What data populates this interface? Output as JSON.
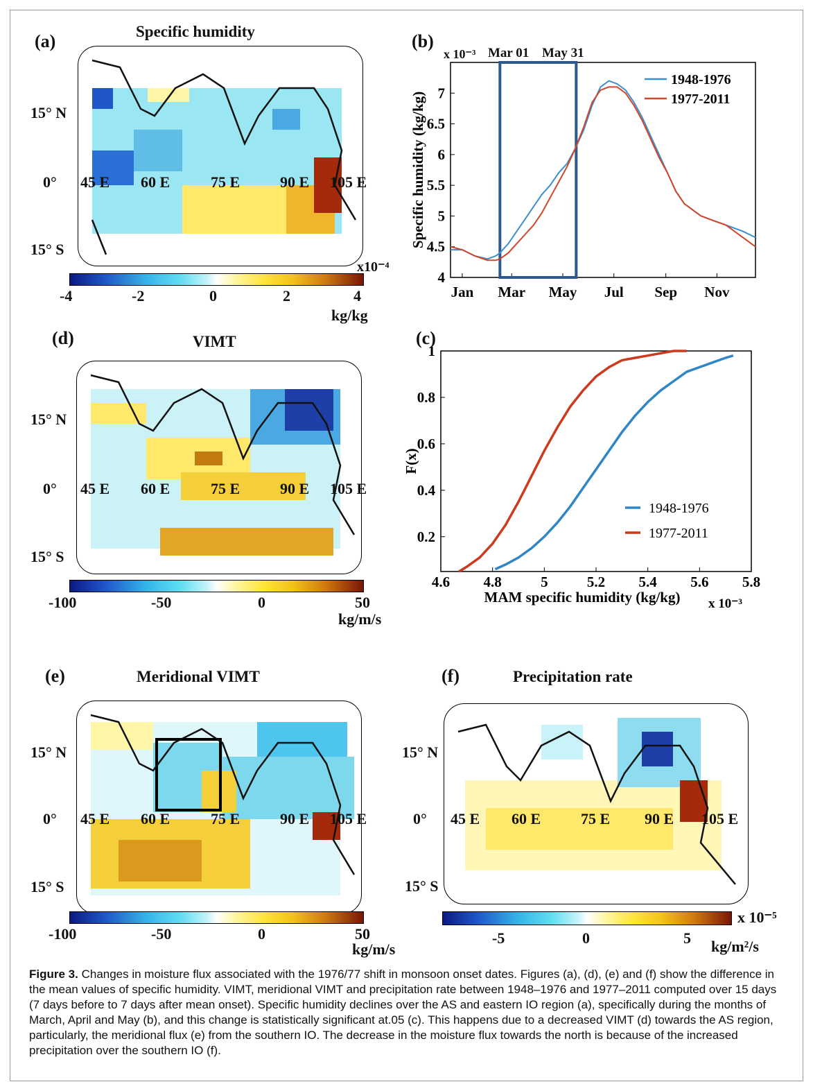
{
  "panels": {
    "a": {
      "label": "(a)",
      "title": "Specific humidity",
      "lat_labels": [
        "15° N",
        "0°",
        "15° S"
      ],
      "lon_labels": [
        "45 E",
        "60 E",
        "75 E",
        "90 E",
        "105 E"
      ],
      "exponent": "x10⁻⁴",
      "ticks": [
        "-4",
        "-2",
        "0",
        "2",
        "4"
      ],
      "unit": "kg/kg"
    },
    "b": {
      "label": "(b)",
      "exponent": "x 10⁻³",
      "annotations": [
        "Mar 01",
        "May 31"
      ]
    },
    "c": {
      "label": "(c)"
    },
    "d": {
      "label": "(d)",
      "title": "VIMT",
      "lat_labels": [
        "15° N",
        "0°",
        "15° S"
      ],
      "lon_labels": [
        "45 E",
        "60 E",
        "75 E",
        "90 E",
        "105 E"
      ],
      "ticks": [
        "-100",
        "-50",
        "0",
        "50"
      ],
      "unit": "kg/m/s"
    },
    "e": {
      "label": "(e)",
      "title": "Meridional VIMT",
      "lat_labels": [
        "15° N",
        "0°",
        "15° S"
      ],
      "lon_labels": [
        "45 E",
        "60 E",
        "75 E",
        "90 E",
        "105 E"
      ],
      "ticks": [
        "-100",
        "-50",
        "0",
        "50"
      ],
      "unit": "kg/m/s"
    },
    "f": {
      "label": "(f)",
      "title": "Precipitation rate",
      "lat_labels": [
        "15° N",
        "0°",
        "15° S"
      ],
      "lon_labels": [
        "45 E",
        "60 E",
        "75 E",
        "90 E",
        "105 E"
      ],
      "exponent": "x 10⁻⁵",
      "ticks": [
        "-5",
        "0",
        "5"
      ],
      "unit": "kg/m²/s"
    }
  },
  "chart_data": [
    {
      "id": "b",
      "type": "line",
      "ylabel": "Specific humidity (kg/kg)",
      "xlabel": "",
      "x_ticks": [
        "Jan",
        "Mar",
        "May",
        "Jul",
        "Sep",
        "Nov"
      ],
      "x_tick_days": [
        15,
        74,
        135,
        196,
        258,
        319
      ],
      "y_ticks": [
        "4",
        "4.5",
        "5",
        "5.5",
        "6",
        "6.5",
        "7"
      ],
      "ylim": [
        4,
        7.5
      ],
      "xlim": [
        1,
        365
      ],
      "highlight_box": {
        "from_day": 60,
        "to_day": 151
      },
      "legend_position": "top-right",
      "series": [
        {
          "name": "1948-1976",
          "color": "#3a8fcf",
          "x": [
            1,
            15,
            30,
            45,
            55,
            60,
            70,
            80,
            90,
            100,
            110,
            120,
            130,
            140,
            150,
            160,
            170,
            180,
            190,
            200,
            210,
            220,
            230,
            240,
            250,
            260,
            270,
            280,
            290,
            300,
            310,
            320,
            330,
            340,
            350,
            365
          ],
          "y": [
            4.45,
            4.45,
            4.35,
            4.3,
            4.35,
            4.4,
            4.55,
            4.75,
            4.95,
            5.15,
            5.35,
            5.5,
            5.7,
            5.85,
            6.1,
            6.4,
            6.8,
            7.1,
            7.2,
            7.15,
            7.05,
            6.85,
            6.6,
            6.3,
            6.0,
            5.7,
            5.4,
            5.2,
            5.1,
            5.0,
            4.95,
            4.9,
            4.85,
            4.8,
            4.75,
            4.65
          ]
        },
        {
          "name": "1977-2011",
          "color": "#d2452a",
          "x": [
            1,
            15,
            30,
            45,
            55,
            60,
            70,
            80,
            90,
            100,
            110,
            120,
            130,
            140,
            150,
            160,
            170,
            180,
            190,
            200,
            210,
            220,
            230,
            240,
            250,
            260,
            270,
            280,
            290,
            300,
            310,
            320,
            330,
            340,
            350,
            365
          ],
          "y": [
            4.5,
            4.45,
            4.35,
            4.28,
            4.28,
            4.3,
            4.4,
            4.55,
            4.7,
            4.85,
            5.05,
            5.3,
            5.55,
            5.8,
            6.1,
            6.45,
            6.85,
            7.05,
            7.1,
            7.1,
            7.0,
            6.8,
            6.55,
            6.25,
            5.95,
            5.7,
            5.4,
            5.2,
            5.1,
            5.0,
            4.95,
            4.9,
            4.85,
            4.75,
            4.65,
            4.5
          ]
        }
      ]
    },
    {
      "id": "c",
      "type": "line",
      "xlabel": "MAM specific humidity (kg/kg)",
      "x_exponent": "x 10⁻³",
      "ylabel": "F(x)",
      "x_ticks": [
        "4.6",
        "4.8",
        "5",
        "5.2",
        "5.4",
        "5.6",
        "5.8"
      ],
      "y_ticks": [
        "0.2",
        "0.4",
        "0.6",
        "0.8",
        "1"
      ],
      "xlim": [
        4.6,
        5.8
      ],
      "ylim": [
        0.05,
        1.0
      ],
      "legend_position": "bottom-right",
      "series": [
        {
          "name": "1948-1976",
          "color": "#2f86c4",
          "x": [
            4.81,
            4.85,
            4.9,
            4.95,
            5.0,
            5.05,
            5.1,
            5.15,
            5.2,
            5.25,
            5.3,
            5.35,
            5.4,
            5.45,
            5.5,
            5.55,
            5.6,
            5.65,
            5.7,
            5.73
          ],
          "y": [
            0.06,
            0.08,
            0.11,
            0.15,
            0.2,
            0.26,
            0.33,
            0.41,
            0.49,
            0.57,
            0.65,
            0.72,
            0.78,
            0.83,
            0.87,
            0.91,
            0.93,
            0.95,
            0.97,
            0.98
          ]
        },
        {
          "name": "1977-2011",
          "color": "#cc3a1e",
          "x": [
            4.67,
            4.7,
            4.75,
            4.8,
            4.85,
            4.9,
            4.95,
            5.0,
            5.05,
            5.1,
            5.15,
            5.2,
            5.25,
            5.3,
            5.35,
            5.4,
            5.45,
            5.5,
            5.55
          ],
          "y": [
            0.05,
            0.07,
            0.11,
            0.17,
            0.25,
            0.35,
            0.46,
            0.57,
            0.67,
            0.76,
            0.83,
            0.89,
            0.93,
            0.96,
            0.97,
            0.98,
            0.99,
            1.0,
            1.0
          ]
        }
      ]
    }
  ],
  "caption": {
    "label": "Figure 3.",
    "text": " Changes in moisture flux associated with the 1976/77 shift in monsoon onset dates. Figures (a), (d), (e) and (f) show the difference in the mean values of specific humidity. VIMT, meridional VIMT and precipitation rate between 1948–1976 and 1977–2011 computed over 15 days (7 days before to 7 days after mean onset). Specific humidity declines over the AS and eastern IO region (a), specifically during the months of March, April and May (b), and this change is statistically significant at.05 (c). This happens due to a decreased VIMT (d) towards the AS region, particularly, the meridional flux (e) from the southern IO. The decrease in the moisture flux towards the north is because of the increased precipitation over the southern IO (f)."
  }
}
